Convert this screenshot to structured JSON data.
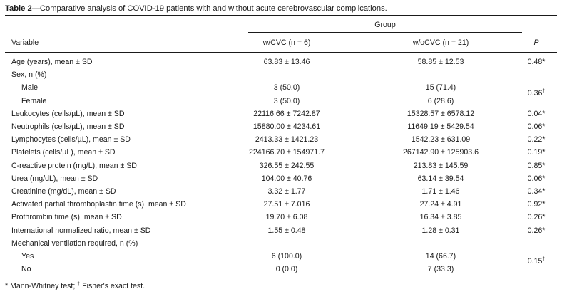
{
  "caption": {
    "label": "Table 2",
    "text": "—Comparative analysis of COVID-19 patients with and without acute cerebrovascular complications."
  },
  "header": {
    "group": "Group",
    "variable": "Variable",
    "col1": "w/CVC (n = 6)",
    "col2": "w/oCVC (n = 21)",
    "p": "P"
  },
  "rows": [
    {
      "label": "Age (years), mean ± SD",
      "c1": "63.83 ± 13.46",
      "c2": "58.85 ± 12.53",
      "p": "0.48*"
    },
    {
      "label": "Sex, n (%)",
      "c1": "",
      "c2": "",
      "p": ""
    },
    {
      "label": "Male",
      "c1": "3 (50.0)",
      "c2": "15 (71.4)",
      "p": ""
    },
    {
      "label": "Female",
      "c1": "3 (50.0)",
      "c2": "6 (28.6)",
      "p": ""
    },
    {
      "label": "Leukocytes (cells/µL), mean ± SD",
      "c1": "22116.66 ± 7242.87",
      "c2": "15328.57 ± 6578.12",
      "p": "0.04*"
    },
    {
      "label": "Neutrophils (cells/µL), mean ± SD",
      "c1": "15880.00 ± 4234.61",
      "c2": "11649.19 ± 5429.54",
      "p": "0.06*"
    },
    {
      "label": "Lymphocytes (cells/µL), mean ± SD",
      "c1": "2413.33 ± 1421.23",
      "c2": "1542.23 ± 631.09",
      "p": "0.22*"
    },
    {
      "label": "Platelets (cells/µL), mean ± SD",
      "c1": "224166.70 ± 154971.7",
      "c2": "267142.90 ± 125903.6",
      "p": "0.19*"
    },
    {
      "label": "C-reactive protein (mg/L), mean ± SD",
      "c1": "326.55 ± 242.55",
      "c2": "213.83 ± 145.59",
      "p": "0.85*"
    },
    {
      "label": "Urea (mg/dL), mean ± SD",
      "c1": "104.00 ± 40.76",
      "c2": "63.14 ± 39.54",
      "p": "0.06*"
    },
    {
      "label": "Creatinine (mg/dL), mean ± SD",
      "c1": "3.32 ± 1.77",
      "c2": "1.71 ± 1.46",
      "p": "0.34*"
    },
    {
      "label": "Activated partial thromboplastin time (s), mean ± SD",
      "c1": "27.51 ± 7.016",
      "c2": "27.24 ± 4.91",
      "p": "0.92*"
    },
    {
      "label": "Prothrombin time (s), mean ± SD",
      "c1": "19.70 ± 6.08",
      "c2": "16.34 ± 3.85",
      "p": "0.26*"
    },
    {
      "label": "International normalized ratio, mean ± SD",
      "c1": "1.55 ± 0.48",
      "c2": "1.28 ± 0.31",
      "p": "0.26*"
    },
    {
      "label": "Mechanical ventilation required, n (%)",
      "c1": "",
      "c2": "",
      "p": ""
    },
    {
      "label": "Yes",
      "c1": "6 (100.0)",
      "c2": "14 (66.7)",
      "p": ""
    },
    {
      "label": "No",
      "c1": "0 (0.0)",
      "c2": "7 (33.3)",
      "p": ""
    }
  ],
  "merged_p": {
    "sex": {
      "value": "0.36",
      "mark": "†"
    },
    "ventilation": {
      "value": "0.15",
      "mark": "†"
    }
  },
  "footnote": {
    "part1": "* Mann-Whitney test; ",
    "mark": "†",
    "part2": " Fisher's exact test."
  }
}
